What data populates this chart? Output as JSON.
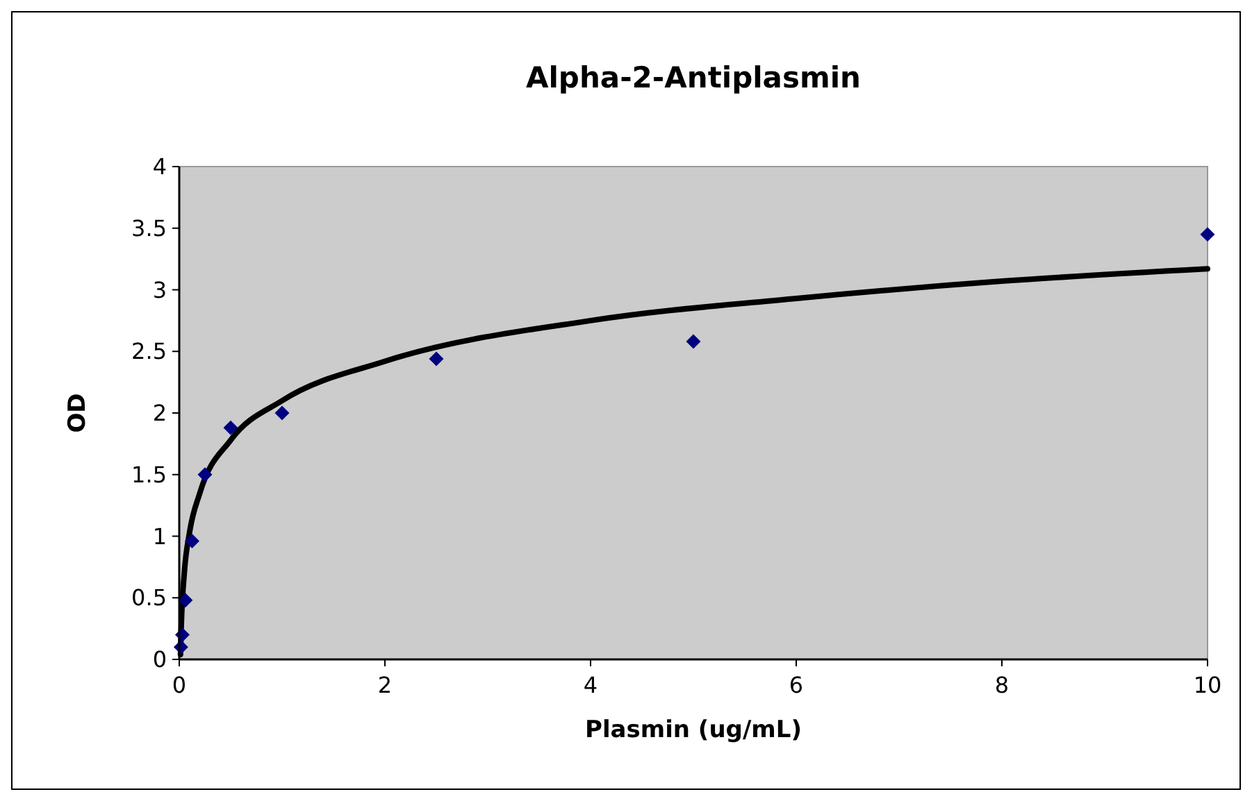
{
  "chart_data": {
    "type": "scatter",
    "title": "Alpha-2-Antiplasmin",
    "xlabel": "Plasmin (ug/mL)",
    "ylabel": "OD",
    "xlim": [
      0,
      10
    ],
    "xticks": [
      0,
      2,
      4,
      6,
      8,
      10
    ],
    "ylim": [
      0,
      4
    ],
    "yticks": [
      0,
      0.5,
      1,
      1.5,
      2,
      2.5,
      3,
      3.5,
      4
    ],
    "grid": false,
    "marker": "diamond",
    "series": [
      {
        "color": "#000080",
        "x": [
          0.016,
          0.03,
          0.06,
          0.125,
          0.25,
          0.5,
          1,
          2.5,
          5,
          10
        ],
        "values": [
          0.1,
          0.2,
          0.48,
          0.96,
          1.5,
          1.88,
          2.0,
          2.44,
          2.58,
          3.45
        ]
      },
      {
        "type": "line",
        "color": "#000000",
        "line_style": "solid",
        "marker": "none",
        "x": [
          0.012,
          0.02,
          0.05,
          0.1,
          0.2,
          0.5,
          1,
          2,
          4,
          6,
          8,
          10
        ],
        "values": [
          0.04,
          0.28,
          0.71,
          1.03,
          1.35,
          1.78,
          2.1,
          2.42,
          2.75,
          2.93,
          3.07,
          3.17
        ]
      }
    ]
  }
}
